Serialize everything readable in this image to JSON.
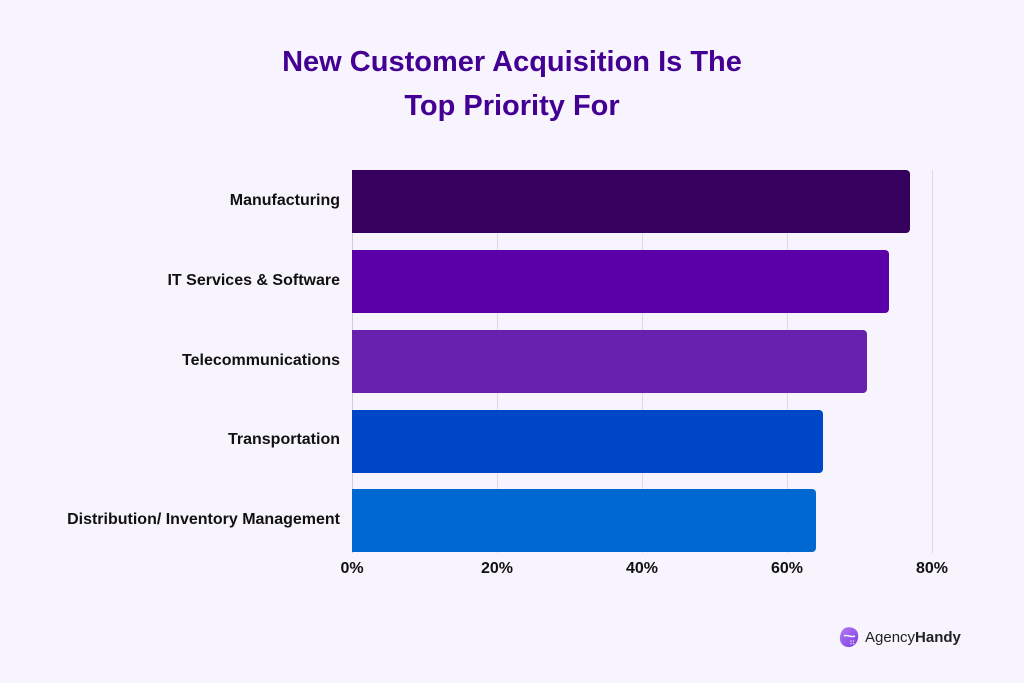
{
  "chart_data": {
    "type": "bar",
    "orientation": "horizontal",
    "title": "New Customer Acquisition Is The Top Priority For",
    "title_lines": [
      "New Customer Acquisition Is The",
      "Top Priority For"
    ],
    "categories": [
      "Manufacturing",
      "IT Services & Software",
      "Telecommunications",
      "Transportation",
      "Distribution/ Inventory Management"
    ],
    "values": [
      77,
      74,
      71,
      65,
      64
    ],
    "colors": [
      "#36005e",
      "#5b00a9",
      "#6721ad",
      "#0047c7",
      "#0068d1"
    ],
    "xlabel": "",
    "ylabel": "",
    "xlim": [
      0,
      80
    ],
    "x_ticks": [
      "0%",
      "20%",
      "40%",
      "60%",
      "80%"
    ],
    "x_tick_values": [
      0,
      20,
      40,
      60,
      80
    ],
    "grid": true,
    "legend": null
  },
  "brand": {
    "name_part1": "Agency",
    "name_part2": "Handy",
    "title_color": "#430093"
  }
}
